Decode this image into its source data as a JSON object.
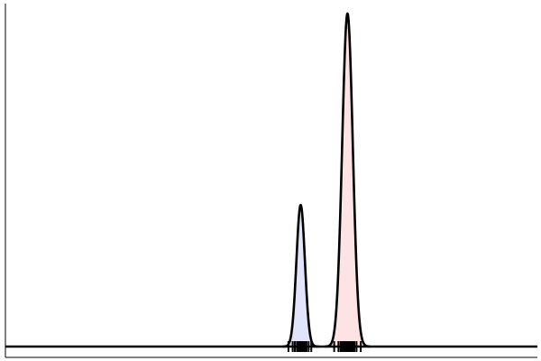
{
  "chart_data": {
    "type": "area",
    "title": "",
    "xlabel": "",
    "ylabel": "",
    "xlim": [
      0,
      100
    ],
    "ylim": [
      0,
      1.0
    ],
    "grid": false,
    "legend": "none",
    "series": [
      {
        "kind": "density",
        "center": 55.5,
        "spread": 0.8,
        "peak": 0.425,
        "fill": "#e2e4fb",
        "stroke": "#000000",
        "rug": [
          53.2,
          54.0,
          54.4,
          54.8,
          55.1,
          55.3,
          55.5,
          55.7,
          55.9,
          56.1,
          56.3,
          56.6,
          57.0,
          57.5
        ]
      },
      {
        "kind": "density",
        "center": 64.3,
        "spread": 1.0,
        "peak": 1.0,
        "fill": "#fde3e3",
        "stroke": "#000000",
        "rug": [
          61.8,
          62.6,
          63.0,
          63.3,
          63.6,
          63.8,
          64.0,
          64.1,
          64.2,
          64.3,
          64.4,
          64.5,
          64.6,
          64.8,
          65.0,
          65.3,
          65.6,
          66.0,
          66.8
        ]
      }
    ],
    "colors": {
      "axis": "#000000",
      "baseline": "#000000",
      "rug": "#000000",
      "baseline_accent_left": "#c23b3b",
      "baseline_accent_right": "#3b4cc2"
    }
  }
}
